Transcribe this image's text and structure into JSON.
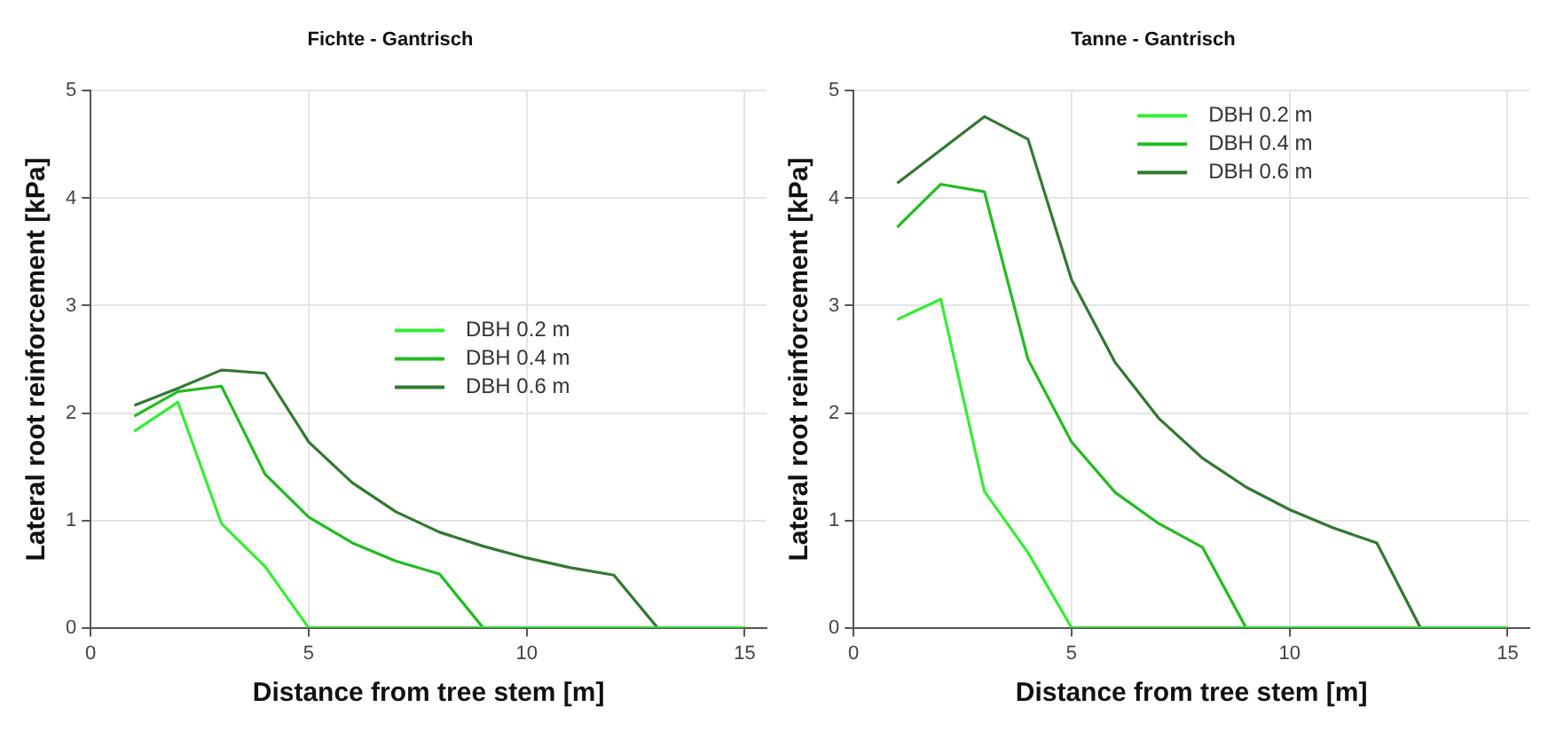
{
  "chart_data": [
    {
      "type": "line",
      "title": "Fichte - Gantrisch",
      "xlabel": "Distance from tree stem [m]",
      "ylabel": "Lateral root reinforcement [kPa]",
      "x": [
        1,
        2,
        3,
        4,
        5,
        6,
        7,
        8,
        9,
        10,
        11,
        12,
        13,
        14,
        15
      ],
      "series": [
        {
          "name": "DBH 0.2 m",
          "color": "#33ee33",
          "values": [
            1.83,
            2.1,
            0.97,
            0.57,
            0,
            0,
            0,
            0,
            0,
            0,
            0,
            0,
            0,
            0,
            0
          ]
        },
        {
          "name": "DBH 0.4 m",
          "color": "#22bb22",
          "values": [
            1.97,
            2.2,
            2.25,
            1.43,
            1.03,
            0.79,
            0.62,
            0.5,
            0,
            0,
            0,
            0,
            0,
            0,
            0
          ]
        },
        {
          "name": "DBH 0.6 m",
          "color": "#337733",
          "values": [
            2.07,
            2.23,
            2.4,
            2.37,
            1.73,
            1.35,
            1.08,
            0.89,
            0.76,
            0.65,
            0.56,
            0.49,
            0,
            0,
            0
          ]
        }
      ],
      "xlim": [
        0,
        15.5
      ],
      "xticks": [
        0,
        5,
        10,
        15
      ],
      "ylim": [
        0,
        5
      ],
      "yticks": [
        0,
        1,
        2,
        3,
        4,
        5
      ],
      "grid": true,
      "legend": "right"
    },
    {
      "type": "line",
      "title": "Tanne - Gantrisch",
      "xlabel": "Distance from tree stem [m]",
      "ylabel": "Lateral root reinforcement [kPa]",
      "x": [
        1,
        2,
        3,
        4,
        5,
        6,
        7,
        8,
        9,
        10,
        11,
        12,
        13,
        14,
        15
      ],
      "series": [
        {
          "name": "DBH 0.2 m",
          "color": "#33ee33",
          "values": [
            2.87,
            3.06,
            1.27,
            0.7,
            0,
            0,
            0,
            0,
            0,
            0,
            0,
            0,
            0,
            0,
            0
          ]
        },
        {
          "name": "DBH 0.4 m",
          "color": "#22bb22",
          "values": [
            3.73,
            4.13,
            4.06,
            2.5,
            1.73,
            1.26,
            0.97,
            0.75,
            0,
            0,
            0,
            0,
            0,
            0,
            0
          ]
        },
        {
          "name": "DBH 0.6 m",
          "color": "#337733",
          "values": [
            4.14,
            4.45,
            4.76,
            4.55,
            3.24,
            2.47,
            1.95,
            1.58,
            1.31,
            1.1,
            0.93,
            0.79,
            0,
            0,
            0
          ]
        }
      ],
      "xlim": [
        0,
        15.5
      ],
      "xticks": [
        0,
        5,
        10,
        15
      ],
      "ylim": [
        0,
        5
      ],
      "yticks": [
        0,
        1,
        2,
        3,
        4,
        5
      ],
      "grid": true,
      "legend": "top right"
    }
  ]
}
